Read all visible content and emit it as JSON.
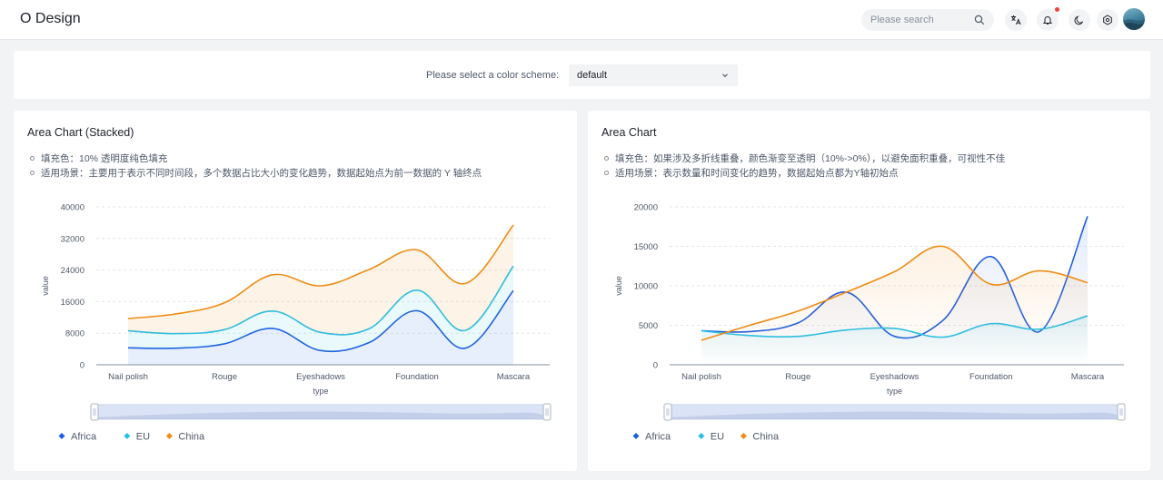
{
  "header": {
    "title": "O Design",
    "search_placeholder": "Please search",
    "icons": [
      "search-icon",
      "translate-icon",
      "bell-icon",
      "moon-icon",
      "settings-icon"
    ]
  },
  "scheme": {
    "label": "Please select a color scheme:",
    "selected": "default"
  },
  "colors": {
    "africa": "#1f5fe0",
    "eu": "#27c0e6",
    "china": "#f08c13"
  },
  "chart_left": {
    "title": "Area Chart (Stacked)",
    "notes": [
      "填充色：10% 透明度纯色填充",
      "适用场景：主要用于表示不同时间段，多个数据占比大小的变化趋势，数据起始点为前一数据的 Y 轴终点"
    ]
  },
  "chart_right": {
    "title": "Area Chart",
    "notes": [
      "填充色：如果涉及多折线重叠，颜色渐变至透明（10%->0%），以避免面积重叠，可视性不佳",
      "适用场景：表示数量和时间变化的趋势，数据起始点都为Y轴初始点"
    ]
  },
  "chart_data": [
    {
      "type": "area",
      "stacked": true,
      "categories": [
        "Nail polish",
        "Rouge",
        "Eyeshadows",
        "Foundation",
        "Mascara"
      ],
      "x": [
        "Nail polish",
        "",
        "Rouge",
        "",
        "Eyeshadows",
        "",
        "Foundation",
        "",
        "Mascara"
      ],
      "xlabel": "type",
      "ylabel": "value",
      "ylim": [
        0,
        40000
      ],
      "yticks": [
        "0",
        "8000",
        "16000",
        "24000",
        "32000",
        "40000"
      ],
      "series": [
        {
          "name": "Africa",
          "values": [
            4300,
            4200,
            5300,
            9200,
            3600,
            5600,
            13700,
            4200,
            18800
          ]
        },
        {
          "name": "EU",
          "values": [
            4300,
            3700,
            3600,
            4400,
            4600,
            3500,
            5200,
            4500,
            6200
          ]
        },
        {
          "name": "China",
          "values": [
            3100,
            5000,
            6800,
            9200,
            11800,
            15000,
            10200,
            11900,
            10400
          ]
        }
      ],
      "legend": "bottom-left",
      "grid": true
    },
    {
      "type": "area",
      "stacked": false,
      "categories": [
        "Nail polish",
        "Rouge",
        "Eyeshadows",
        "Foundation",
        "Mascara"
      ],
      "x": [
        "Nail polish",
        "",
        "Rouge",
        "",
        "Eyeshadows",
        "",
        "Foundation",
        "",
        "Mascara"
      ],
      "xlabel": "type",
      "ylabel": "value",
      "ylim": [
        0,
        20000
      ],
      "yticks": [
        "0",
        "5000",
        "10000",
        "15000",
        "20000"
      ],
      "series": [
        {
          "name": "Africa",
          "values": [
            4300,
            4200,
            5300,
            9200,
            3600,
            5600,
            13700,
            4200,
            18800
          ]
        },
        {
          "name": "EU",
          "values": [
            4300,
            3700,
            3600,
            4400,
            4600,
            3500,
            5200,
            4500,
            6200
          ]
        },
        {
          "name": "China",
          "values": [
            3100,
            5000,
            6800,
            9200,
            11800,
            15000,
            10200,
            11900,
            10400
          ]
        }
      ],
      "legend": "bottom-left",
      "grid": true
    }
  ]
}
